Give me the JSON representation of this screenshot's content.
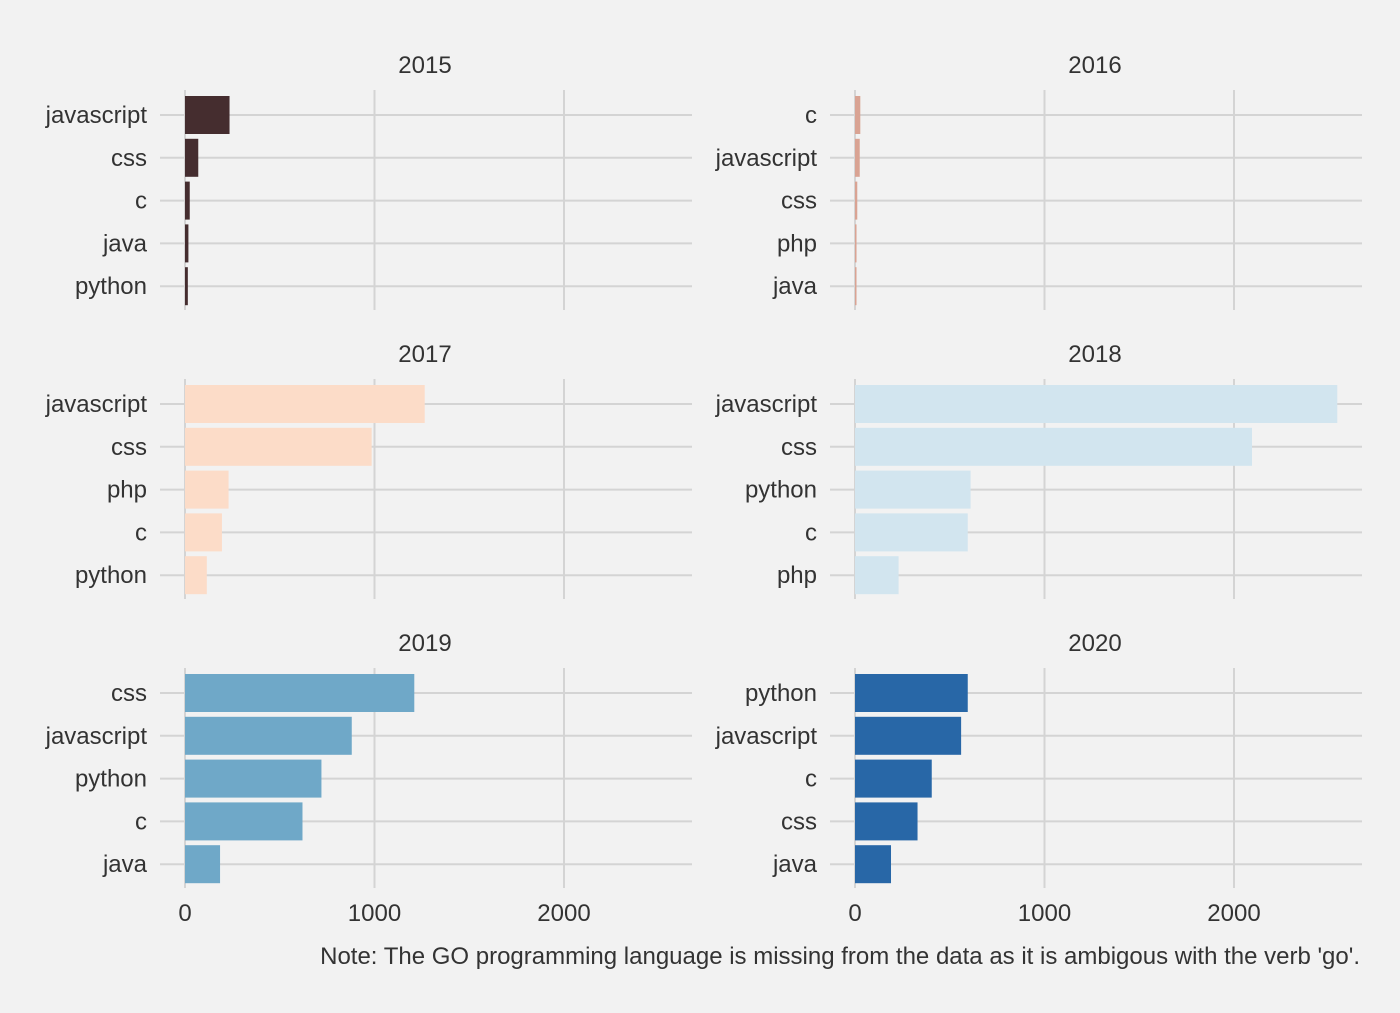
{
  "chart_data": {
    "type": "bar",
    "orientation": "horizontal",
    "layout": "small-multiples 3x2",
    "grid": true,
    "legend": "none",
    "xlim": [
      0,
      2700
    ],
    "x_ticks": [
      0,
      1000,
      2000
    ],
    "x_tick_labels": [
      "0",
      "1000",
      "2000"
    ],
    "panels": [
      {
        "title": "2015",
        "color": "#452d2f",
        "categories": [
          "javascript",
          "css",
          "c",
          "java",
          "python"
        ],
        "values": [
          235,
          70,
          25,
          18,
          15
        ]
      },
      {
        "title": "2016",
        "color": "#d9a393",
        "categories": [
          "c",
          "javascript",
          "css",
          "php",
          "java"
        ],
        "values": [
          28,
          25,
          12,
          8,
          6
        ]
      },
      {
        "title": "2017",
        "color": "#fcdcc8",
        "categories": [
          "javascript",
          "css",
          "php",
          "c",
          "python"
        ],
        "values": [
          1265,
          985,
          230,
          195,
          115
        ]
      },
      {
        "title": "2018",
        "color": "#d2e5ef",
        "categories": [
          "javascript",
          "css",
          "python",
          "c",
          "php"
        ],
        "values": [
          2545,
          2095,
          610,
          595,
          230
        ]
      },
      {
        "title": "2019",
        "color": "#6fa8c8",
        "categories": [
          "css",
          "javascript",
          "python",
          "c",
          "java"
        ],
        "values": [
          1210,
          880,
          720,
          620,
          185
        ]
      },
      {
        "title": "2020",
        "color": "#2867a7",
        "categories": [
          "python",
          "javascript",
          "c",
          "css",
          "java"
        ],
        "values": [
          595,
          560,
          405,
          330,
          190
        ]
      }
    ],
    "caption": "Note: The GO programming language is missing from the data as it is ambigous with the verb 'go'."
  }
}
